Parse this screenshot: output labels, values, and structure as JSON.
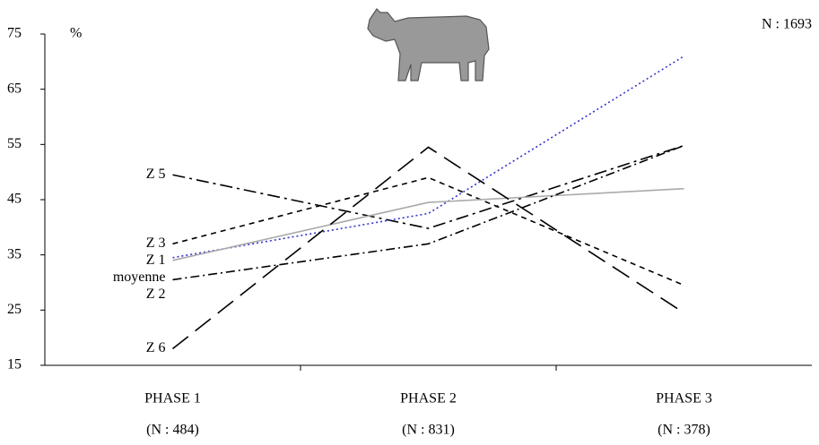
{
  "chart_data": {
    "type": "line",
    "y_unit_label": "%",
    "annotation": "N : 1693",
    "categories": [
      "PHASE 1",
      "PHASE 2",
      "PHASE 3"
    ],
    "category_counts": [
      "(N : 484)",
      "(N : 831)",
      "(N : 378)"
    ],
    "ylim": [
      15,
      75
    ],
    "yticks": [
      15,
      25,
      35,
      45,
      55,
      65,
      75
    ],
    "series": [
      {
        "name": "Z 5",
        "color": "#000000",
        "dash": "14 5 3 5",
        "values": [
          49.5,
          39.8,
          54.8
        ]
      },
      {
        "name": "Z 3",
        "color": "#000000",
        "dash": "6 5",
        "values": [
          37,
          49,
          29.5
        ]
      },
      {
        "name": "Z 1",
        "color": "#3333cc",
        "dash": "2 3",
        "values": [
          34.5,
          42.5,
          71
        ]
      },
      {
        "name": "moyenne",
        "color": "#aaaaaa",
        "dash": "none",
        "values": [
          34,
          44.5,
          47
        ]
      },
      {
        "name": "Z 2",
        "color": "#000000",
        "dash": "10 4 2 4",
        "values": [
          30.5,
          37,
          54.8
        ]
      },
      {
        "name": "Z 6",
        "color": "#000000",
        "dash": "22 10",
        "values": [
          18,
          54.5,
          24.5
        ]
      }
    ]
  }
}
